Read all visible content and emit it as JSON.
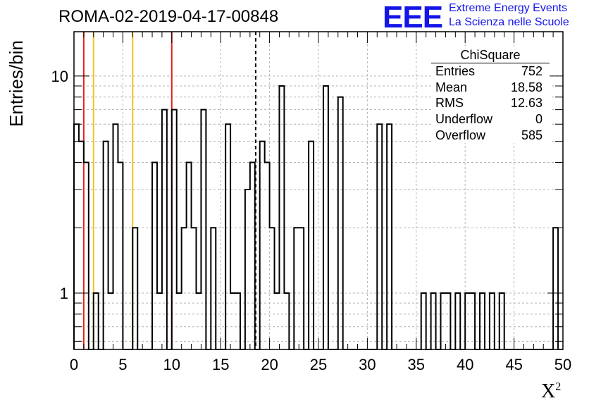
{
  "title": "ROMA-02-2019-04-17-00848",
  "logo": {
    "letters": "EEE",
    "line1": "Extreme Energy Events",
    "line2": "La Scienza nelle Scuole"
  },
  "stats": {
    "name": "ChiSquare",
    "rows": [
      {
        "label": "Entries",
        "value": "752"
      },
      {
        "label": "Mean",
        "value": "18.58"
      },
      {
        "label": "RMS",
        "value": "12.63"
      },
      {
        "label": "Underflow",
        "value": "0"
      },
      {
        "label": "Overflow",
        "value": "585"
      }
    ]
  },
  "chart_data": {
    "type": "histogram",
    "xlabel": "X",
    "xlabel_sup": "2",
    "ylabel": "Entries/bin",
    "xlim": [
      0,
      50
    ],
    "ylim": [
      0.55,
      16
    ],
    "yscale": "log",
    "grid": true,
    "bin_width": 1,
    "x_ticks": [
      0,
      5,
      10,
      15,
      20,
      25,
      30,
      35,
      40,
      45,
      50
    ],
    "y_ticks": [
      1,
      10
    ],
    "values": [
      6,
      5,
      4,
      0,
      1,
      0,
      5,
      1,
      6,
      4,
      0,
      0,
      2,
      0,
      0,
      0,
      4,
      1,
      7,
      0,
      7,
      1,
      2,
      4,
      2,
      1,
      7,
      0,
      2,
      0,
      0,
      6,
      1,
      1,
      0,
      3,
      4,
      0,
      5,
      4,
      2,
      1,
      9,
      1,
      0,
      2,
      2,
      0,
      5,
      0,
      0,
      9,
      0,
      0,
      8,
      0,
      0,
      0,
      0,
      0,
      0,
      0,
      6,
      0,
      6,
      0,
      0,
      0,
      0,
      0,
      0,
      1,
      0,
      1,
      0,
      1,
      1,
      0,
      1,
      0,
      1,
      1,
      0,
      1,
      0,
      1,
      0,
      1,
      0,
      0,
      0,
      0,
      0,
      0,
      0,
      0,
      0,
      0,
      2,
      0
    ],
    "markers": [
      {
        "x": 1,
        "color": "#e8201a",
        "style": "solid"
      },
      {
        "x": 2,
        "color": "#f2c21b",
        "style": "solid"
      },
      {
        "x": 6,
        "color": "#f2c21b",
        "style": "solid"
      },
      {
        "x": 10,
        "color": "#e8201a",
        "style": "solid"
      },
      {
        "x": 18.58,
        "color": "#000000",
        "style": "dashed"
      }
    ],
    "line_color": "#000000"
  }
}
